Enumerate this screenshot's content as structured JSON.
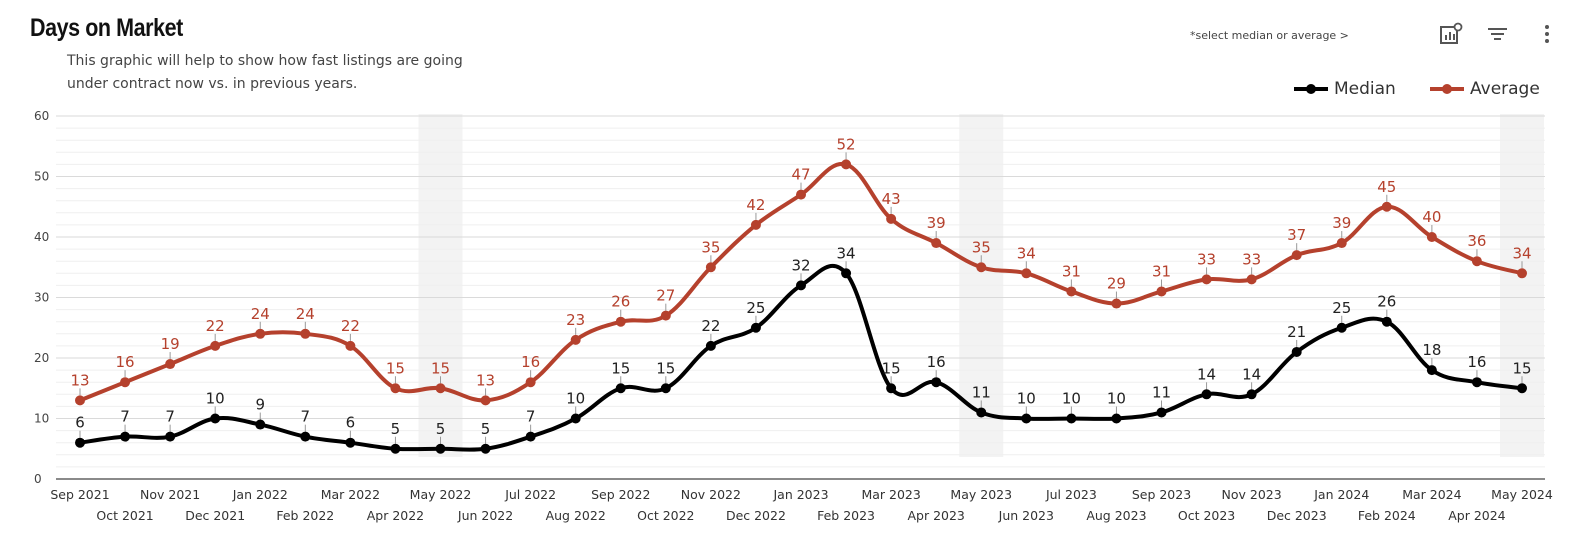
{
  "header": {
    "title": "Days on Market",
    "subtitle": "This graphic will help to show how fast listings are going under contract now vs. in previous years.",
    "hint": "*select median or average >",
    "icons": [
      "chart-settings-icon",
      "filter-icon",
      "more-vertical-icon"
    ]
  },
  "colors": {
    "median": "#000000",
    "average": "#b5412d",
    "grid": "#e2e2e2",
    "band": "#f3f3f3"
  },
  "chart_data": {
    "type": "line",
    "categories": [
      "Sep 2021",
      "Oct 2021",
      "Nov 2021",
      "Dec 2021",
      "Jan 2022",
      "Feb 2022",
      "Mar 2022",
      "Apr 2022",
      "May 2022",
      "Jun 2022",
      "Jul 2022",
      "Aug 2022",
      "Sep 2022",
      "Oct 2022",
      "Nov 2022",
      "Dec 2022",
      "Jan 2023",
      "Feb 2023",
      "Mar 2023",
      "Apr 2023",
      "May 2023",
      "Jun 2023",
      "Jul 2023",
      "Aug 2023",
      "Sep 2023",
      "Oct 2023",
      "Nov 2023",
      "Dec 2023",
      "Jan 2024",
      "Feb 2024",
      "Mar 2024",
      "Apr 2024",
      "May 2024"
    ],
    "series": [
      {
        "name": "Median",
        "values": [
          6,
          7,
          7,
          10,
          9,
          7,
          6,
          5,
          5,
          5,
          7,
          10,
          15,
          15,
          22,
          25,
          32,
          34,
          15,
          16,
          11,
          10,
          10,
          10,
          11,
          14,
          14,
          21,
          25,
          26,
          18,
          16,
          15
        ]
      },
      {
        "name": "Average",
        "values": [
          13,
          16,
          19,
          22,
          24,
          24,
          22,
          15,
          15,
          13,
          16,
          23,
          26,
          27,
          35,
          42,
          47,
          52,
          43,
          39,
          35,
          34,
          31,
          29,
          31,
          33,
          33,
          37,
          39,
          45,
          40,
          36,
          34
        ]
      }
    ],
    "ylim": [
      0,
      60
    ],
    "yticks": [
      0,
      10,
      20,
      30,
      40,
      50,
      60
    ],
    "highlight_bands": [
      "May 2022",
      "May 2023",
      "May 2024"
    ],
    "grid": true,
    "legend": "top-right",
    "xlabel": "",
    "ylabel": ""
  }
}
